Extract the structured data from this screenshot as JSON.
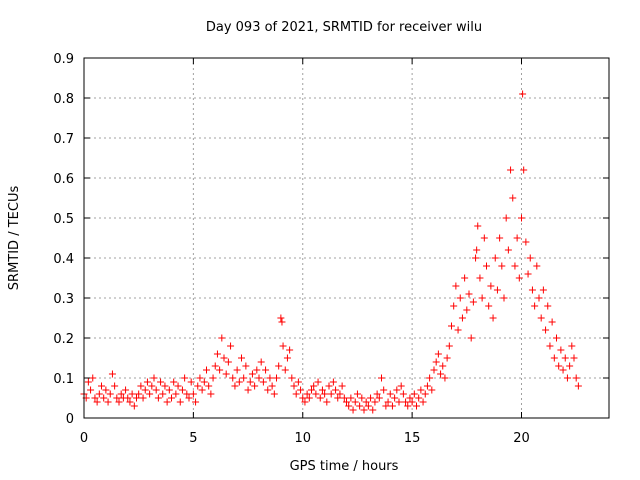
{
  "chart_data": {
    "type": "scatter",
    "title": "Day 093 of 2021, SRMTID for receiver wilu",
    "xlabel": "GPS time / hours",
    "ylabel": "SRMTID / TECUs",
    "xlim": [
      0,
      24
    ],
    "ylim": [
      0,
      0.9
    ],
    "xticks": [
      0,
      5,
      10,
      15,
      20
    ],
    "xtick_labels": [
      "0",
      "5",
      "10",
      "15",
      "20"
    ],
    "yticks": [
      0,
      0.1,
      0.2,
      0.3,
      0.4,
      0.5,
      0.6,
      0.7,
      0.8,
      0.9
    ],
    "ytick_labels": [
      "0",
      "0.1",
      "0.2",
      "0.3",
      "0.4",
      "0.5",
      "0.6",
      "0.7",
      "0.8",
      "0.9"
    ],
    "grid": true,
    "marker": "+",
    "color": "#ff0000",
    "series": [
      {
        "name": "SRMTID",
        "points": [
          [
            0.0,
            0.06
          ],
          [
            0.1,
            0.05
          ],
          [
            0.2,
            0.09
          ],
          [
            0.3,
            0.07
          ],
          [
            0.4,
            0.1
          ],
          [
            0.5,
            0.05
          ],
          [
            0.6,
            0.04
          ],
          [
            0.7,
            0.06
          ],
          [
            0.8,
            0.08
          ],
          [
            0.9,
            0.05
          ],
          [
            1.0,
            0.07
          ],
          [
            1.1,
            0.04
          ],
          [
            1.2,
            0.06
          ],
          [
            1.3,
            0.11
          ],
          [
            1.4,
            0.08
          ],
          [
            1.5,
            0.05
          ],
          [
            1.6,
            0.04
          ],
          [
            1.7,
            0.06
          ],
          [
            1.8,
            0.05
          ],
          [
            1.9,
            0.07
          ],
          [
            2.0,
            0.05
          ],
          [
            2.1,
            0.04
          ],
          [
            2.2,
            0.06
          ],
          [
            2.3,
            0.03
          ],
          [
            2.4,
            0.05
          ],
          [
            2.5,
            0.06
          ],
          [
            2.6,
            0.08
          ],
          [
            2.7,
            0.05
          ],
          [
            2.8,
            0.07
          ],
          [
            2.9,
            0.09
          ],
          [
            3.0,
            0.06
          ],
          [
            3.1,
            0.08
          ],
          [
            3.2,
            0.1
          ],
          [
            3.3,
            0.07
          ],
          [
            3.4,
            0.05
          ],
          [
            3.5,
            0.09
          ],
          [
            3.6,
            0.06
          ],
          [
            3.7,
            0.08
          ],
          [
            3.8,
            0.04
          ],
          [
            3.9,
            0.07
          ],
          [
            4.0,
            0.05
          ],
          [
            4.1,
            0.09
          ],
          [
            4.2,
            0.06
          ],
          [
            4.3,
            0.08
          ],
          [
            4.4,
            0.04
          ],
          [
            4.5,
            0.07
          ],
          [
            4.6,
            0.1
          ],
          [
            4.7,
            0.06
          ],
          [
            4.8,
            0.05
          ],
          [
            4.9,
            0.09
          ],
          [
            5.0,
            0.06
          ],
          [
            5.1,
            0.04
          ],
          [
            5.2,
            0.08
          ],
          [
            5.3,
            0.1
          ],
          [
            5.4,
            0.07
          ],
          [
            5.5,
            0.09
          ],
          [
            5.6,
            0.12
          ],
          [
            5.7,
            0.08
          ],
          [
            5.8,
            0.06
          ],
          [
            5.9,
            0.1
          ],
          [
            6.0,
            0.13
          ],
          [
            6.1,
            0.16
          ],
          [
            6.2,
            0.12
          ],
          [
            6.3,
            0.2
          ],
          [
            6.4,
            0.15
          ],
          [
            6.5,
            0.11
          ],
          [
            6.6,
            0.14
          ],
          [
            6.7,
            0.18
          ],
          [
            6.8,
            0.1
          ],
          [
            6.9,
            0.08
          ],
          [
            7.0,
            0.12
          ],
          [
            7.1,
            0.09
          ],
          [
            7.2,
            0.15
          ],
          [
            7.3,
            0.1
          ],
          [
            7.4,
            0.13
          ],
          [
            7.5,
            0.07
          ],
          [
            7.6,
            0.09
          ],
          [
            7.7,
            0.11
          ],
          [
            7.8,
            0.08
          ],
          [
            7.9,
            0.12
          ],
          [
            8.0,
            0.1
          ],
          [
            8.1,
            0.14
          ],
          [
            8.2,
            0.09
          ],
          [
            8.3,
            0.12
          ],
          [
            8.4,
            0.07
          ],
          [
            8.5,
            0.1
          ],
          [
            8.6,
            0.08
          ],
          [
            8.7,
            0.06
          ],
          [
            8.8,
            0.1
          ],
          [
            8.9,
            0.13
          ],
          [
            9.0,
            0.25
          ],
          [
            9.05,
            0.24
          ],
          [
            9.1,
            0.18
          ],
          [
            9.2,
            0.12
          ],
          [
            9.3,
            0.15
          ],
          [
            9.4,
            0.17
          ],
          [
            9.5,
            0.1
          ],
          [
            9.6,
            0.08
          ],
          [
            9.7,
            0.06
          ],
          [
            9.8,
            0.09
          ],
          [
            9.9,
            0.07
          ],
          [
            10.0,
            0.05
          ],
          [
            10.1,
            0.04
          ],
          [
            10.2,
            0.06
          ],
          [
            10.3,
            0.05
          ],
          [
            10.4,
            0.07
          ],
          [
            10.5,
            0.08
          ],
          [
            10.6,
            0.06
          ],
          [
            10.7,
            0.09
          ],
          [
            10.8,
            0.05
          ],
          [
            10.9,
            0.07
          ],
          [
            11.0,
            0.06
          ],
          [
            11.1,
            0.04
          ],
          [
            11.2,
            0.08
          ],
          [
            11.3,
            0.06
          ],
          [
            11.4,
            0.09
          ],
          [
            11.5,
            0.07
          ],
          [
            11.6,
            0.05
          ],
          [
            11.7,
            0.06
          ],
          [
            11.8,
            0.08
          ],
          [
            11.9,
            0.05
          ],
          [
            12.0,
            0.04
          ],
          [
            12.1,
            0.03
          ],
          [
            12.2,
            0.05
          ],
          [
            12.3,
            0.02
          ],
          [
            12.4,
            0.04
          ],
          [
            12.5,
            0.06
          ],
          [
            12.6,
            0.03
          ],
          [
            12.7,
            0.05
          ],
          [
            12.8,
            0.02
          ],
          [
            12.9,
            0.04
          ],
          [
            13.0,
            0.03
          ],
          [
            13.1,
            0.05
          ],
          [
            13.2,
            0.02
          ],
          [
            13.3,
            0.04
          ],
          [
            13.4,
            0.06
          ],
          [
            13.5,
            0.05
          ],
          [
            13.6,
            0.1
          ],
          [
            13.7,
            0.07
          ],
          [
            13.8,
            0.03
          ],
          [
            13.9,
            0.04
          ],
          [
            14.0,
            0.06
          ],
          [
            14.1,
            0.03
          ],
          [
            14.2,
            0.05
          ],
          [
            14.3,
            0.07
          ],
          [
            14.4,
            0.04
          ],
          [
            14.5,
            0.08
          ],
          [
            14.6,
            0.06
          ],
          [
            14.7,
            0.04
          ],
          [
            14.8,
            0.03
          ],
          [
            14.9,
            0.05
          ],
          [
            15.0,
            0.04
          ],
          [
            15.1,
            0.06
          ],
          [
            15.2,
            0.03
          ],
          [
            15.3,
            0.05
          ],
          [
            15.4,
            0.07
          ],
          [
            15.5,
            0.04
          ],
          [
            15.6,
            0.06
          ],
          [
            15.7,
            0.08
          ],
          [
            15.8,
            0.1
          ],
          [
            15.9,
            0.07
          ],
          [
            16.0,
            0.12
          ],
          [
            16.1,
            0.14
          ],
          [
            16.2,
            0.16
          ],
          [
            16.3,
            0.11
          ],
          [
            16.4,
            0.13
          ],
          [
            16.5,
            0.1
          ],
          [
            16.6,
            0.15
          ],
          [
            16.7,
            0.18
          ],
          [
            16.8,
            0.23
          ],
          [
            16.9,
            0.28
          ],
          [
            17.0,
            0.33
          ],
          [
            17.1,
            0.22
          ],
          [
            17.2,
            0.3
          ],
          [
            17.3,
            0.25
          ],
          [
            17.4,
            0.35
          ],
          [
            17.5,
            0.27
          ],
          [
            17.6,
            0.31
          ],
          [
            17.7,
            0.2
          ],
          [
            17.8,
            0.29
          ],
          [
            17.9,
            0.4
          ],
          [
            17.95,
            0.42
          ],
          [
            18.0,
            0.48
          ],
          [
            18.1,
            0.35
          ],
          [
            18.2,
            0.3
          ],
          [
            18.3,
            0.45
          ],
          [
            18.4,
            0.38
          ],
          [
            18.5,
            0.28
          ],
          [
            18.6,
            0.33
          ],
          [
            18.7,
            0.25
          ],
          [
            18.8,
            0.4
          ],
          [
            18.9,
            0.32
          ],
          [
            19.0,
            0.45
          ],
          [
            19.1,
            0.38
          ],
          [
            19.2,
            0.3
          ],
          [
            19.3,
            0.5
          ],
          [
            19.4,
            0.42
          ],
          [
            19.5,
            0.62
          ],
          [
            19.6,
            0.55
          ],
          [
            19.7,
            0.38
          ],
          [
            19.8,
            0.45
          ],
          [
            19.9,
            0.35
          ],
          [
            20.0,
            0.5
          ],
          [
            20.05,
            0.81
          ],
          [
            20.1,
            0.62
          ],
          [
            20.2,
            0.44
          ],
          [
            20.3,
            0.36
          ],
          [
            20.4,
            0.4
          ],
          [
            20.5,
            0.32
          ],
          [
            20.6,
            0.28
          ],
          [
            20.7,
            0.38
          ],
          [
            20.8,
            0.3
          ],
          [
            20.9,
            0.25
          ],
          [
            21.0,
            0.32
          ],
          [
            21.1,
            0.22
          ],
          [
            21.2,
            0.28
          ],
          [
            21.3,
            0.18
          ],
          [
            21.4,
            0.24
          ],
          [
            21.5,
            0.15
          ],
          [
            21.6,
            0.2
          ],
          [
            21.7,
            0.13
          ],
          [
            21.8,
            0.17
          ],
          [
            21.9,
            0.12
          ],
          [
            22.0,
            0.15
          ],
          [
            22.1,
            0.1
          ],
          [
            22.2,
            0.13
          ],
          [
            22.3,
            0.18
          ],
          [
            22.4,
            0.15
          ],
          [
            22.5,
            0.1
          ],
          [
            22.6,
            0.08
          ]
        ]
      }
    ]
  }
}
